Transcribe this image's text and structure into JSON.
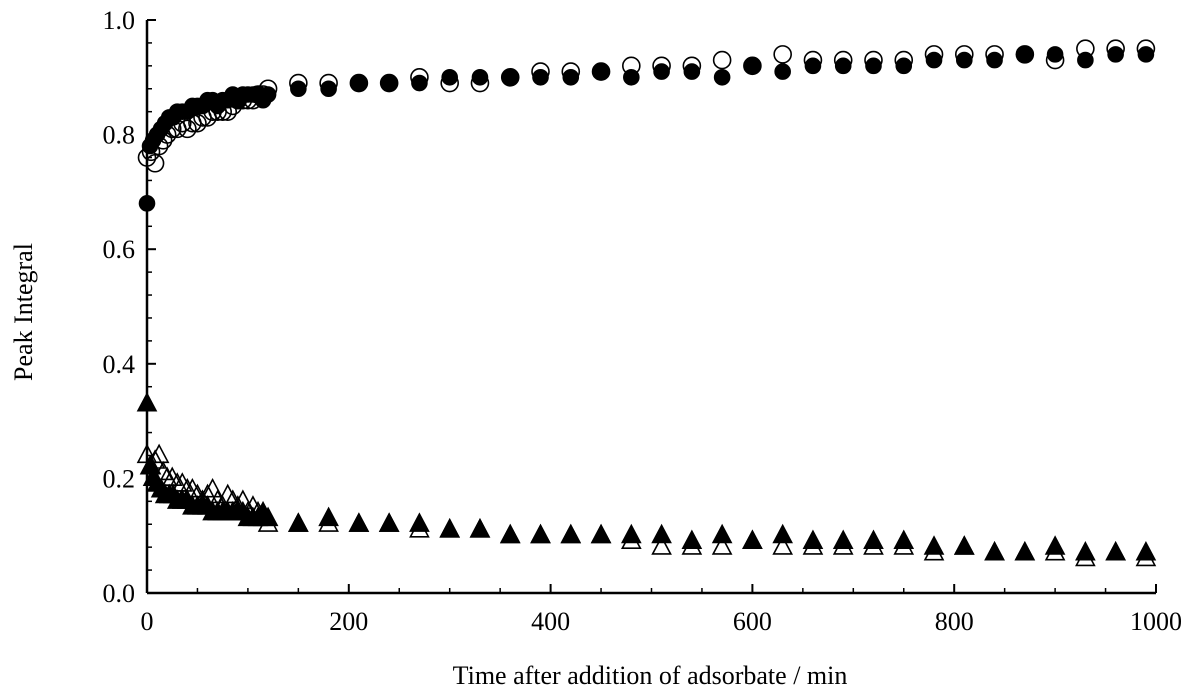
{
  "chart_data": {
    "type": "scatter",
    "title": "",
    "xlabel": "Time after addition of adsorbate / min",
    "ylabel": "Peak Integral",
    "xlim": [
      0,
      1000
    ],
    "ylim": [
      0.0,
      1.0
    ],
    "x_ticks": [
      "0",
      "200",
      "400",
      "600",
      "800",
      "1000"
    ],
    "y_ticks": [
      "0.0",
      "0.2",
      "0.4",
      "0.6",
      "0.8",
      "1.0"
    ],
    "grid": false,
    "legend": "none",
    "colors": {
      "ink": "#000000"
    },
    "series": [
      {
        "marker": "open-circle",
        "points": [
          [
            0,
            0.76
          ],
          [
            4,
            0.77
          ],
          [
            8,
            0.75
          ],
          [
            12,
            0.78
          ],
          [
            16,
            0.79
          ],
          [
            20,
            0.8
          ],
          [
            25,
            0.81
          ],
          [
            30,
            0.81
          ],
          [
            35,
            0.82
          ],
          [
            40,
            0.81
          ],
          [
            45,
            0.82
          ],
          [
            50,
            0.82
          ],
          [
            55,
            0.83
          ],
          [
            60,
            0.83
          ],
          [
            65,
            0.84
          ],
          [
            70,
            0.84
          ],
          [
            75,
            0.84
          ],
          [
            80,
            0.84
          ],
          [
            85,
            0.85
          ],
          [
            90,
            0.86
          ],
          [
            95,
            0.86
          ],
          [
            100,
            0.86
          ],
          [
            105,
            0.86
          ],
          [
            110,
            0.87
          ],
          [
            115,
            0.87
          ],
          [
            120,
            0.88
          ],
          [
            150,
            0.89
          ],
          [
            180,
            0.89
          ],
          [
            210,
            0.89
          ],
          [
            240,
            0.89
          ],
          [
            270,
            0.9
          ],
          [
            300,
            0.89
          ],
          [
            330,
            0.89
          ],
          [
            360,
            0.9
          ],
          [
            390,
            0.91
          ],
          [
            420,
            0.91
          ],
          [
            450,
            0.91
          ],
          [
            480,
            0.92
          ],
          [
            510,
            0.92
          ],
          [
            540,
            0.92
          ],
          [
            570,
            0.93
          ],
          [
            600,
            0.92
          ],
          [
            630,
            0.94
          ],
          [
            660,
            0.93
          ],
          [
            690,
            0.93
          ],
          [
            720,
            0.93
          ],
          [
            750,
            0.93
          ],
          [
            780,
            0.94
          ],
          [
            810,
            0.94
          ],
          [
            840,
            0.94
          ],
          [
            870,
            0.94
          ],
          [
            900,
            0.93
          ],
          [
            930,
            0.95
          ],
          [
            960,
            0.95
          ],
          [
            990,
            0.95
          ]
        ]
      },
      {
        "marker": "filled-circle",
        "points": [
          [
            0,
            0.68
          ],
          [
            3,
            0.78
          ],
          [
            6,
            0.79
          ],
          [
            10,
            0.8
          ],
          [
            14,
            0.81
          ],
          [
            18,
            0.82
          ],
          [
            22,
            0.83
          ],
          [
            26,
            0.83
          ],
          [
            30,
            0.84
          ],
          [
            35,
            0.84
          ],
          [
            40,
            0.84
          ],
          [
            45,
            0.85
          ],
          [
            50,
            0.85
          ],
          [
            55,
            0.85
          ],
          [
            60,
            0.86
          ],
          [
            65,
            0.86
          ],
          [
            70,
            0.85
          ],
          [
            75,
            0.86
          ],
          [
            80,
            0.86
          ],
          [
            85,
            0.87
          ],
          [
            90,
            0.86
          ],
          [
            95,
            0.87
          ],
          [
            100,
            0.87
          ],
          [
            105,
            0.87
          ],
          [
            110,
            0.87
          ],
          [
            115,
            0.86
          ],
          [
            120,
            0.87
          ],
          [
            150,
            0.88
          ],
          [
            180,
            0.88
          ],
          [
            210,
            0.89
          ],
          [
            240,
            0.89
          ],
          [
            270,
            0.89
          ],
          [
            300,
            0.9
          ],
          [
            330,
            0.9
          ],
          [
            360,
            0.9
          ],
          [
            390,
            0.9
          ],
          [
            420,
            0.9
          ],
          [
            450,
            0.91
          ],
          [
            480,
            0.9
          ],
          [
            510,
            0.91
          ],
          [
            540,
            0.91
          ],
          [
            570,
            0.9
          ],
          [
            600,
            0.92
          ],
          [
            630,
            0.91
          ],
          [
            660,
            0.92
          ],
          [
            690,
            0.92
          ],
          [
            720,
            0.92
          ],
          [
            750,
            0.92
          ],
          [
            780,
            0.93
          ],
          [
            810,
            0.93
          ],
          [
            840,
            0.93
          ],
          [
            870,
            0.94
          ],
          [
            900,
            0.94
          ],
          [
            930,
            0.93
          ],
          [
            960,
            0.94
          ],
          [
            990,
            0.94
          ]
        ]
      },
      {
        "marker": "open-triangle",
        "points": [
          [
            0,
            0.24
          ],
          [
            4,
            0.22
          ],
          [
            8,
            0.23
          ],
          [
            12,
            0.24
          ],
          [
            16,
            0.21
          ],
          [
            20,
            0.2
          ],
          [
            25,
            0.2
          ],
          [
            30,
            0.19
          ],
          [
            35,
            0.19
          ],
          [
            40,
            0.18
          ],
          [
            45,
            0.18
          ],
          [
            50,
            0.17
          ],
          [
            55,
            0.16
          ],
          [
            60,
            0.17
          ],
          [
            65,
            0.18
          ],
          [
            70,
            0.16
          ],
          [
            75,
            0.15
          ],
          [
            80,
            0.17
          ],
          [
            85,
            0.16
          ],
          [
            90,
            0.15
          ],
          [
            95,
            0.16
          ],
          [
            100,
            0.14
          ],
          [
            105,
            0.15
          ],
          [
            110,
            0.14
          ],
          [
            115,
            0.13
          ],
          [
            120,
            0.12
          ],
          [
            150,
            0.12
          ],
          [
            180,
            0.12
          ],
          [
            210,
            0.12
          ],
          [
            240,
            0.12
          ],
          [
            270,
            0.11
          ],
          [
            300,
            0.11
          ],
          [
            330,
            0.11
          ],
          [
            360,
            0.1
          ],
          [
            390,
            0.1
          ],
          [
            420,
            0.1
          ],
          [
            450,
            0.1
          ],
          [
            480,
            0.09
          ],
          [
            510,
            0.08
          ],
          [
            540,
            0.08
          ],
          [
            570,
            0.08
          ],
          [
            600,
            0.09
          ],
          [
            630,
            0.08
          ],
          [
            660,
            0.08
          ],
          [
            690,
            0.08
          ],
          [
            720,
            0.08
          ],
          [
            750,
            0.08
          ],
          [
            780,
            0.07
          ],
          [
            810,
            0.08
          ],
          [
            840,
            0.07
          ],
          [
            870,
            0.07
          ],
          [
            900,
            0.07
          ],
          [
            930,
            0.06
          ],
          [
            960,
            0.07
          ],
          [
            990,
            0.06
          ]
        ]
      },
      {
        "marker": "filled-triangle",
        "points": [
          [
            0,
            0.33
          ],
          [
            3,
            0.22
          ],
          [
            6,
            0.2
          ],
          [
            10,
            0.19
          ],
          [
            14,
            0.18
          ],
          [
            18,
            0.17
          ],
          [
            22,
            0.17
          ],
          [
            26,
            0.17
          ],
          [
            30,
            0.16
          ],
          [
            35,
            0.16
          ],
          [
            40,
            0.16
          ],
          [
            45,
            0.15
          ],
          [
            50,
            0.15
          ],
          [
            55,
            0.15
          ],
          [
            60,
            0.15
          ],
          [
            65,
            0.14
          ],
          [
            70,
            0.14
          ],
          [
            75,
            0.14
          ],
          [
            80,
            0.14
          ],
          [
            85,
            0.14
          ],
          [
            90,
            0.14
          ],
          [
            95,
            0.14
          ],
          [
            100,
            0.13
          ],
          [
            105,
            0.13
          ],
          [
            110,
            0.13
          ],
          [
            115,
            0.14
          ],
          [
            120,
            0.13
          ],
          [
            150,
            0.12
          ],
          [
            180,
            0.13
          ],
          [
            210,
            0.12
          ],
          [
            240,
            0.12
          ],
          [
            270,
            0.12
          ],
          [
            300,
            0.11
          ],
          [
            330,
            0.11
          ],
          [
            360,
            0.1
          ],
          [
            390,
            0.1
          ],
          [
            420,
            0.1
          ],
          [
            450,
            0.1
          ],
          [
            480,
            0.1
          ],
          [
            510,
            0.1
          ],
          [
            540,
            0.09
          ],
          [
            570,
            0.1
          ],
          [
            600,
            0.09
          ],
          [
            630,
            0.1
          ],
          [
            660,
            0.09
          ],
          [
            690,
            0.09
          ],
          [
            720,
            0.09
          ],
          [
            750,
            0.09
          ],
          [
            780,
            0.08
          ],
          [
            810,
            0.08
          ],
          [
            840,
            0.07
          ],
          [
            870,
            0.07
          ],
          [
            900,
            0.08
          ],
          [
            930,
            0.07
          ],
          [
            960,
            0.07
          ],
          [
            990,
            0.07
          ]
        ]
      }
    ]
  }
}
